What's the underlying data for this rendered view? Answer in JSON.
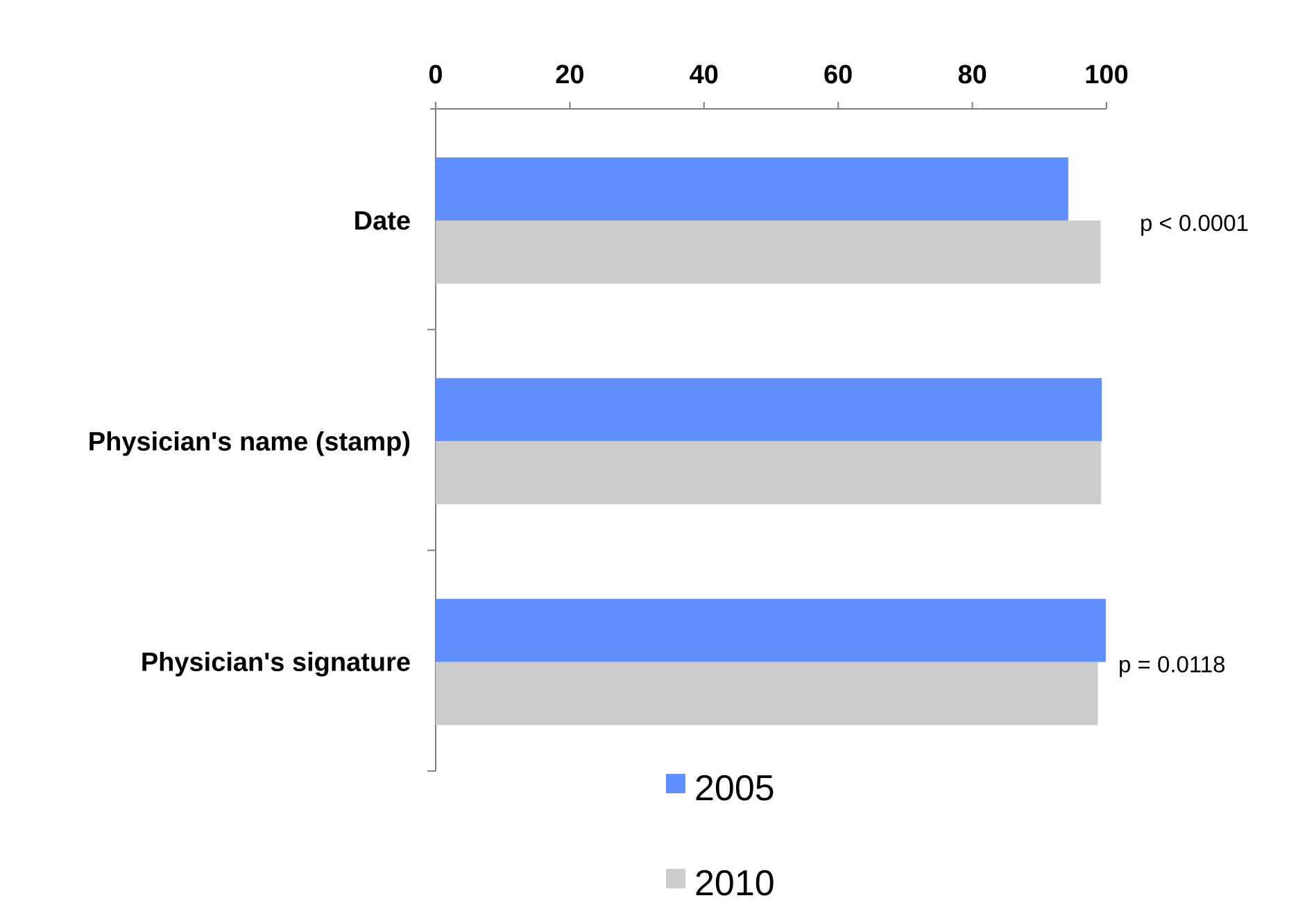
{
  "chart_data": {
    "type": "bar",
    "orientation": "horizontal",
    "categories": [
      "Date",
      "Physician's name (stamp)",
      "Physician's signature"
    ],
    "series": [
      {
        "name": "2005",
        "color": "#628ffe",
        "values": [
          94.3,
          99.3,
          99.9
        ]
      },
      {
        "name": "2010",
        "color": "#cccccc",
        "values": [
          99.1,
          99.2,
          98.7
        ]
      }
    ],
    "x_axis": {
      "position": "top",
      "ticks": [
        0,
        20,
        40,
        60,
        80,
        100
      ],
      "tick_labels": [
        "0",
        "20",
        "40",
        "60",
        "80",
        "100"
      ],
      "range": [
        0,
        100
      ]
    },
    "annotations": [
      {
        "category": "Date",
        "text": "p < 0.0001"
      },
      {
        "category": "Physician's signature",
        "text": "p = 0.0118"
      }
    ],
    "legend": {
      "placement": "bottom",
      "layout": "vertical"
    },
    "grid": false
  }
}
